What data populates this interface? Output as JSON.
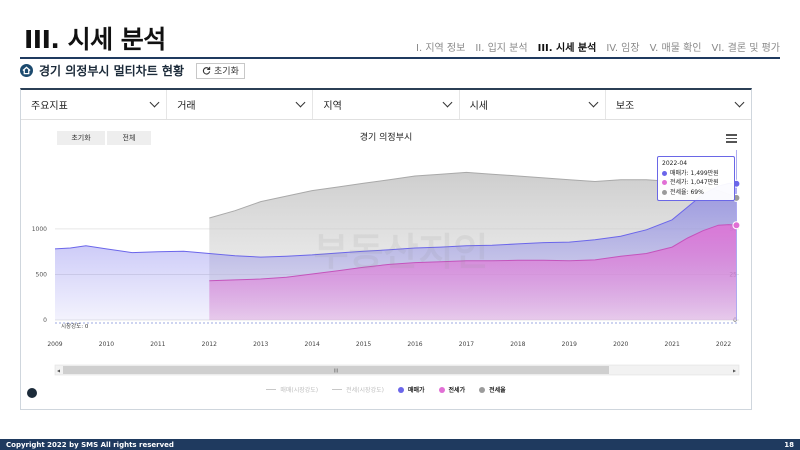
{
  "header": {
    "title": "III. 시세 분석",
    "tabs": [
      {
        "label": "I. 지역 정보",
        "active": false
      },
      {
        "label": "II. 입지 분석",
        "active": false
      },
      {
        "label": "III. 시세 분석",
        "active": true
      },
      {
        "label": "IV. 임장",
        "active": false
      },
      {
        "label": "V. 매물 확인",
        "active": false
      },
      {
        "label": "VI. 결론 및 평가",
        "active": false
      }
    ]
  },
  "sub_header": {
    "icon": "home-icon",
    "title": "경기 의정부시 멀티차트 현황",
    "reset_label": "초기화",
    "reset_icon": "refresh-icon"
  },
  "filters": [
    {
      "label": "주요지표"
    },
    {
      "label": "거래"
    },
    {
      "label": "지역"
    },
    {
      "label": "시세"
    },
    {
      "label": "보조"
    }
  ],
  "chart_controls": {
    "reset_label": "초기화",
    "all_label": "전체",
    "menu_icon": "hamburger-menu-icon"
  },
  "scrollbar": {
    "handle_label": "III"
  },
  "tooltip": {
    "date": "2022-04",
    "sale_text": "매매가: 1,499만원",
    "jeonse_text": "전세가: 1,047만원",
    "ratio_text": "전세율: 69%"
  },
  "watermark": "부동산지인",
  "colors": {
    "sale": "#6b66ea",
    "jeonse": "#e16fd5",
    "ratio": "#9b9b9b",
    "brand": "#1f3a5f"
  },
  "chart_data": {
    "type": "area",
    "title": "경기 의정부시",
    "x_ticks": [
      "2009",
      "2010",
      "2011",
      "2012",
      "2013",
      "2014",
      "2015",
      "2016",
      "2017",
      "2018",
      "2019",
      "2020",
      "2021",
      "2022"
    ],
    "xlim": [
      2009.0,
      2022.3
    ],
    "y_left": {
      "ticks": [
        "0",
        "500",
        "1000"
      ],
      "range": [
        0,
        1800
      ]
    },
    "y_right": {
      "ticks": [
        "0",
        "25",
        "50"
      ],
      "range": [
        0,
        90
      ]
    },
    "volume_label": "시장강도: 0",
    "series": [
      {
        "name": "매매가",
        "axis": "left",
        "x": [
          2009.0,
          2009.3,
          2009.6,
          2010.0,
          2010.5,
          2011.0,
          2011.5,
          2012.0,
          2012.5,
          2013.0,
          2013.5,
          2014.0,
          2014.5,
          2015.0,
          2015.5,
          2016.0,
          2016.5,
          2017.0,
          2017.5,
          2018.0,
          2018.5,
          2019.0,
          2019.5,
          2020.0,
          2020.5,
          2021.0,
          2021.3,
          2021.6,
          2021.9,
          2022.1,
          2022.25
        ],
        "y": [
          780,
          790,
          815,
          780,
          740,
          750,
          755,
          730,
          705,
          690,
          700,
          715,
          735,
          755,
          770,
          790,
          800,
          815,
          820,
          835,
          850,
          855,
          880,
          920,
          990,
          1100,
          1240,
          1380,
          1470,
          1499,
          1495
        ]
      },
      {
        "name": "전세가",
        "axis": "left",
        "x": [
          2012.0,
          2012.5,
          2013.0,
          2013.5,
          2014.0,
          2014.5,
          2015.0,
          2015.5,
          2016.0,
          2016.5,
          2017.0,
          2017.5,
          2018.0,
          2018.5,
          2019.0,
          2019.5,
          2020.0,
          2020.5,
          2021.0,
          2021.3,
          2021.6,
          2021.9,
          2022.1,
          2022.25
        ],
        "y": [
          430,
          440,
          450,
          470,
          505,
          540,
          580,
          610,
          630,
          640,
          650,
          650,
          655,
          655,
          650,
          660,
          700,
          730,
          800,
          900,
          980,
          1040,
          1047,
          1040
        ]
      },
      {
        "name": "전세율",
        "axis": "right",
        "x": [
          2012.0,
          2012.5,
          2013.0,
          2013.5,
          2014.0,
          2014.5,
          2015.0,
          2015.5,
          2016.0,
          2016.5,
          2017.0,
          2017.5,
          2018.0,
          2018.5,
          2019.0,
          2019.5,
          2020.0,
          2020.5,
          2021.0,
          2021.3,
          2021.6,
          2021.9,
          2022.1,
          2022.25
        ],
        "y": [
          56,
          60,
          65,
          68,
          71,
          73,
          75,
          77,
          79,
          80,
          81,
          80,
          79,
          78,
          77,
          76,
          77,
          77,
          76,
          75,
          73,
          71,
          69,
          67
        ]
      }
    ],
    "legend": [
      {
        "name": "매매(시장강도)",
        "active": false
      },
      {
        "name": "전세(시장강도)",
        "active": false
      },
      {
        "name": "매매가",
        "active": true
      },
      {
        "name": "전세가",
        "active": true
      },
      {
        "name": "전세율",
        "active": true
      }
    ],
    "grid": true,
    "legend_position": "bottom"
  },
  "footer": {
    "copyright": "Copyright 2022 by SMS All rights reserved",
    "page_number": "18"
  }
}
